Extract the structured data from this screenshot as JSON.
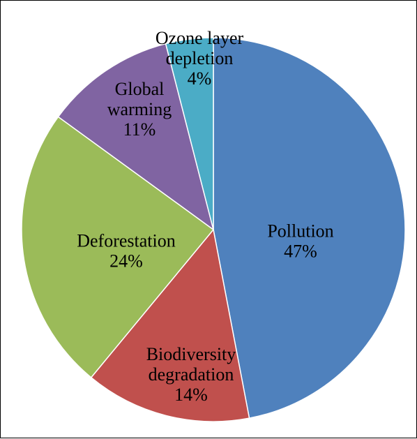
{
  "chart_data": {
    "type": "pie",
    "title": "",
    "start": "12 o'clock",
    "direction": "clockwise",
    "slices": [
      {
        "name": "pollution",
        "label_lines": [
          "Pollution",
          "47%"
        ],
        "value": 47,
        "color": "#4F81BD"
      },
      {
        "name": "biodiversity-degradation",
        "label_lines": [
          "Biodiversity",
          "degradation",
          "14%"
        ],
        "value": 14,
        "color": "#C0504D"
      },
      {
        "name": "deforestation",
        "label_lines": [
          "Deforestation",
          "24%"
        ],
        "value": 24,
        "color": "#9BBB59"
      },
      {
        "name": "global-warming",
        "label_lines": [
          "Global",
          "warming",
          "11%"
        ],
        "value": 11,
        "color": "#8064A2"
      },
      {
        "name": "ozone-layer-depletion",
        "label_lines": [
          "Ozone layer",
          "depletion",
          "4%"
        ],
        "value": 4,
        "color": "#4BACC6"
      }
    ]
  }
}
